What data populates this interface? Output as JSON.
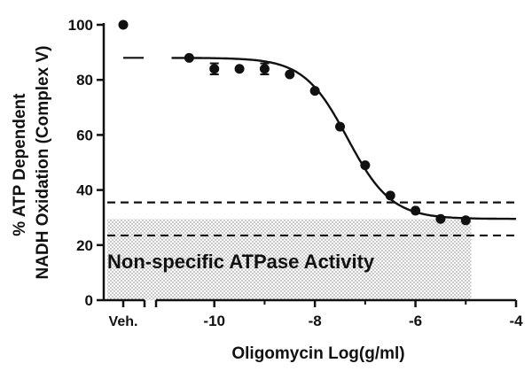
{
  "chart_data": {
    "type": "scatter",
    "title": "",
    "xlabel": "Oligomycin Log(g/ml)",
    "ylabel": "% ATP Dependent NADH Oxidation (Complex V)",
    "ylabel_lines": [
      "% ATP Dependent",
      "NADH Oxidation (Complex V)"
    ],
    "xlim": [
      -11,
      -4
    ],
    "ylim": [
      0,
      100
    ],
    "x_ticks": [
      -10,
      -8,
      -6,
      -4
    ],
    "x_tick_labels": [
      "-10",
      "-8",
      "-6",
      "-4"
    ],
    "y_ticks": [
      0,
      20,
      40,
      60,
      80,
      100
    ],
    "y_tick_labels": [
      "0",
      "20",
      "40",
      "60",
      "80",
      "100"
    ],
    "veh_label": "Veh.",
    "vehicle_point": {
      "label": "Veh.",
      "y": 100
    },
    "series": [
      {
        "points": [
          {
            "x": -10.5,
            "y": 88.0
          },
          {
            "x": -10.0,
            "y": 84.0,
            "err": 2.0
          },
          {
            "x": -9.5,
            "y": 84.0
          },
          {
            "x": -9.0,
            "y": 84.0,
            "err": 2.0
          },
          {
            "x": -8.5,
            "y": 82.0
          },
          {
            "x": -8.0,
            "y": 76.0
          },
          {
            "x": -7.5,
            "y": 63.0
          },
          {
            "x": -7.0,
            "y": 49.0
          },
          {
            "x": -6.5,
            "y": 38.0
          },
          {
            "x": -6.0,
            "y": 32.5
          },
          {
            "x": -5.5,
            "y": 29.5
          },
          {
            "x": -5.0,
            "y": 29.0
          }
        ]
      }
    ],
    "fit_curve": {
      "top": 88,
      "bottom": 29.5,
      "logEC50": -7.35,
      "hill": -1.0
    },
    "baseline": {
      "mean": 29.5,
      "upper": 35.5,
      "lower": 23.5
    },
    "annotation": "Non-specific ATPase Activity",
    "grid": false
  }
}
